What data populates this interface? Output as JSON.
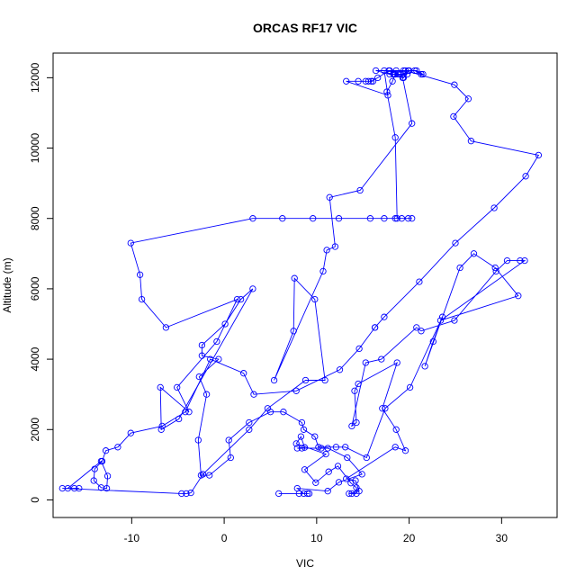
{
  "chart_data": {
    "type": "line",
    "title": "ORCAS RF17 VIC",
    "xlabel": "VIC",
    "ylabel": "Altitude (m)",
    "xlim": [
      -18.5,
      36
    ],
    "ylim": [
      -500,
      12700
    ],
    "x_ticks": [
      -10,
      0,
      10,
      20,
      30
    ],
    "y_ticks": [
      0,
      2000,
      4000,
      6000,
      8000,
      10000,
      12000
    ],
    "grid": false,
    "marker": "open-circle",
    "colors": {
      "series": "#0000ff",
      "axis": "#000000"
    },
    "series": [
      {
        "points": [
          [
            5.9,
            180
          ],
          [
            8.1,
            180
          ],
          [
            9,
            180
          ],
          [
            9.2,
            180
          ],
          [
            8.6,
            180
          ],
          [
            7.9,
            330
          ],
          [
            11.2,
            250
          ],
          [
            12.4,
            500
          ],
          [
            14.9,
            730
          ],
          [
            13.3,
            1200
          ],
          [
            11.2,
            1470
          ],
          [
            10.5,
            1470
          ],
          [
            8.4,
            1470
          ],
          [
            7.9,
            1470
          ],
          [
            8.7,
            1490
          ],
          [
            8.3,
            1800
          ],
          [
            7.8,
            1600
          ],
          [
            11,
            1300
          ],
          [
            8.7,
            860
          ],
          [
            9.9,
            490
          ],
          [
            11.3,
            800
          ],
          [
            12.3,
            960
          ],
          [
            13.7,
            480
          ],
          [
            14.3,
            350
          ],
          [
            14.3,
            180
          ],
          [
            13.8,
            180
          ],
          [
            13.5,
            180
          ],
          [
            14.6,
            250
          ],
          [
            14.2,
            550
          ],
          [
            13.2,
            600
          ],
          [
            18.5,
            1500
          ],
          [
            19.6,
            1400
          ],
          [
            18.6,
            2000
          ],
          [
            17.1,
            2600
          ],
          [
            18.7,
            3900
          ],
          [
            14.5,
            3300
          ],
          [
            14.1,
            3100
          ],
          [
            14.3,
            2200
          ],
          [
            13.8,
            2100
          ],
          [
            15.3,
            3900
          ],
          [
            17,
            4000
          ],
          [
            20.8,
            4900
          ],
          [
            21.3,
            4800
          ],
          [
            24.9,
            5100
          ],
          [
            29.4,
            6500
          ],
          [
            30.6,
            6800
          ],
          [
            32,
            6800
          ],
          [
            32.5,
            6800
          ],
          [
            23.4,
            5100
          ],
          [
            31.8,
            5800
          ],
          [
            29.3,
            6600
          ],
          [
            27,
            7000
          ],
          [
            25.5,
            6600
          ],
          [
            21.7,
            3800
          ],
          [
            22.6,
            4500
          ],
          [
            23.6,
            5200
          ],
          [
            20.1,
            3200
          ],
          [
            17.4,
            2600
          ],
          [
            15.4,
            1200
          ],
          [
            13.1,
            1500
          ],
          [
            12.1,
            1500
          ],
          [
            10.2,
            1500
          ],
          [
            9.8,
            1800
          ],
          [
            8.6,
            2000
          ],
          [
            8.4,
            2200
          ],
          [
            6.4,
            2500
          ],
          [
            5,
            2500
          ],
          [
            2.7,
            2200
          ],
          [
            0.5,
            1700
          ],
          [
            0.7,
            1200
          ],
          [
            -1.6,
            700
          ],
          [
            -2.5,
            700
          ],
          [
            -2.8,
            1700
          ],
          [
            -1.9,
            3000
          ],
          [
            -2.7,
            3500
          ],
          [
            -0.6,
            4000
          ],
          [
            -2.4,
            4100
          ],
          [
            -2.4,
            4400
          ],
          [
            0.1,
            5000
          ],
          [
            1.8,
            5700
          ],
          [
            3.1,
            6000
          ],
          [
            -4.9,
            2300
          ],
          [
            -6.8,
            2000
          ],
          [
            -6.9,
            3200
          ],
          [
            -3.8,
            2500
          ],
          [
            -5.1,
            3200
          ],
          [
            -0.8,
            4500
          ],
          [
            1.4,
            5700
          ],
          [
            -6.3,
            4900
          ],
          [
            -8.9,
            5700
          ],
          [
            -9.1,
            6400
          ],
          [
            -10.1,
            7300
          ],
          [
            3.1,
            8000
          ],
          [
            6.3,
            8000
          ],
          [
            9.6,
            8000
          ],
          [
            12.4,
            8000
          ],
          [
            15.8,
            8000
          ],
          [
            17.3,
            8000
          ],
          [
            18.5,
            8000
          ],
          [
            19.2,
            8000
          ],
          [
            19.9,
            8000
          ],
          [
            20.3,
            8000
          ],
          [
            18.7,
            8000
          ],
          [
            18.5,
            10300
          ],
          [
            17.6,
            11600
          ],
          [
            18.2,
            11900
          ],
          [
            18.5,
            12100
          ],
          [
            19.4,
            12100
          ],
          [
            19.8,
            12100
          ],
          [
            19.1,
            12100
          ],
          [
            18.3,
            12100
          ],
          [
            17.9,
            12100
          ],
          [
            16.4,
            12200
          ],
          [
            17.9,
            12200
          ],
          [
            18.8,
            12100
          ],
          [
            19.4,
            12000
          ],
          [
            20,
            12200
          ],
          [
            20.8,
            12200
          ],
          [
            21.5,
            12100
          ],
          [
            21.3,
            12100
          ],
          [
            20.6,
            12200
          ],
          [
            19.9,
            12200
          ],
          [
            19.4,
            12200
          ],
          [
            18.6,
            12200
          ],
          [
            17.8,
            12200
          ],
          [
            16.6,
            12000
          ],
          [
            15.9,
            11900
          ],
          [
            15.6,
            11900
          ],
          [
            15.3,
            11900
          ],
          [
            16.1,
            11900
          ],
          [
            14.5,
            11900
          ],
          [
            13.2,
            11900
          ],
          [
            17.7,
            11500
          ],
          [
            17.3,
            12200
          ],
          [
            19.6,
            12200
          ],
          [
            24.9,
            11800
          ],
          [
            26.4,
            11400
          ],
          [
            24.8,
            10900
          ],
          [
            26.7,
            10200
          ],
          [
            34,
            9800
          ],
          [
            32.6,
            9200
          ],
          [
            29.2,
            8300
          ],
          [
            25,
            7300
          ],
          [
            21.1,
            6200
          ],
          [
            17.3,
            5200
          ],
          [
            16.3,
            4900
          ]
        ]
      },
      {
        "points": [
          [
            16.3,
            4900
          ],
          [
            14.6,
            4300
          ],
          [
            12.5,
            3700
          ],
          [
            7.8,
            3100
          ],
          [
            3.2,
            3000
          ],
          [
            2.1,
            3600
          ],
          [
            -1.5,
            4000
          ],
          [
            -4.2,
            2500
          ],
          [
            -6.7,
            2100
          ],
          [
            -10.1,
            1900
          ],
          [
            -11.5,
            1500
          ],
          [
            -12.8,
            1400
          ],
          [
            -13.2,
            1100
          ],
          [
            -14,
            880
          ],
          [
            -14.1,
            550
          ],
          [
            -13.3,
            350
          ],
          [
            -12.7,
            330
          ],
          [
            -12.6,
            680
          ],
          [
            -13.3,
            1100
          ],
          [
            -16.9,
            330
          ],
          [
            -15.7,
            330
          ],
          [
            -16.2,
            330
          ],
          [
            -17.5,
            330
          ],
          [
            -4.6,
            180
          ],
          [
            -4.1,
            180
          ],
          [
            -3.6,
            200
          ],
          [
            -2.3,
            730
          ],
          [
            2.7,
            2000
          ],
          [
            4.7,
            2600
          ],
          [
            8.8,
            3400
          ],
          [
            10.9,
            3400
          ],
          [
            9.8,
            5700
          ],
          [
            7.6,
            6300
          ],
          [
            7.5,
            4800
          ],
          [
            5.4,
            3400
          ],
          [
            10.7,
            6500
          ],
          [
            11.1,
            7100
          ],
          [
            12,
            7200
          ],
          [
            11.4,
            8600
          ],
          [
            14.7,
            8800
          ],
          [
            20.3,
            10700
          ],
          [
            19.3,
            12000
          ],
          [
            18.4,
            12100
          ]
        ]
      }
    ]
  }
}
